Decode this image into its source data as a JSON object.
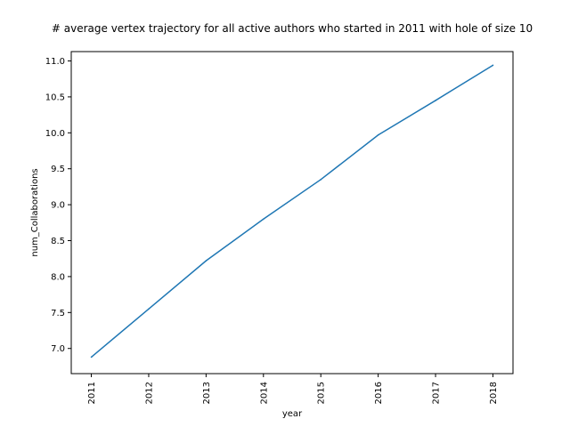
{
  "chart_data": {
    "type": "line",
    "title": "# average vertex trajectory for all active authors who started in 2011 with hole of size 10",
    "xlabel": "year",
    "ylabel": "num_Collaborations",
    "x": [
      2011,
      2012,
      2013,
      2014,
      2015,
      2016,
      2017,
      2018
    ],
    "series": [
      {
        "values": [
          6.88,
          7.55,
          8.22,
          8.8,
          9.35,
          9.97,
          10.45,
          10.94
        ],
        "color": "#1f77b4"
      }
    ],
    "xticks": [
      "2011",
      "2012",
      "2013",
      "2014",
      "2015",
      "2016",
      "2017",
      "2018"
    ],
    "yticks": [
      "7.0",
      "7.5",
      "8.0",
      "8.5",
      "9.0",
      "9.5",
      "10.0",
      "10.5",
      "11.0"
    ],
    "xlim": [
      2010.65,
      2018.35
    ],
    "ylim": [
      6.65,
      11.13
    ],
    "grid": false,
    "legend": "none"
  }
}
